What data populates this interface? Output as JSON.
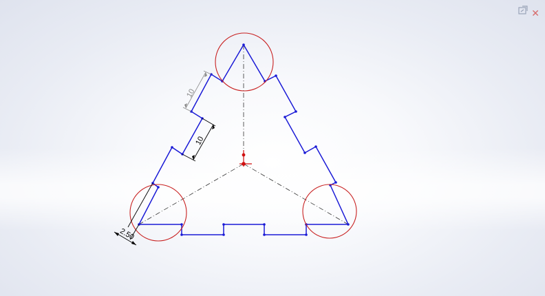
{
  "dimensions": {
    "upper_length": "10",
    "tab_length": "10",
    "radius": "2.50"
  },
  "icons": {
    "exit_sketch": "exit-sketch-icon",
    "close": "close-icon"
  },
  "colors": {
    "profile": "#1a1ad6",
    "construction": "#333333",
    "relation_circle": "#c82020",
    "origin": "#d01010",
    "dimension": "#000000",
    "dimension_inactive": "#8a8a8a"
  }
}
